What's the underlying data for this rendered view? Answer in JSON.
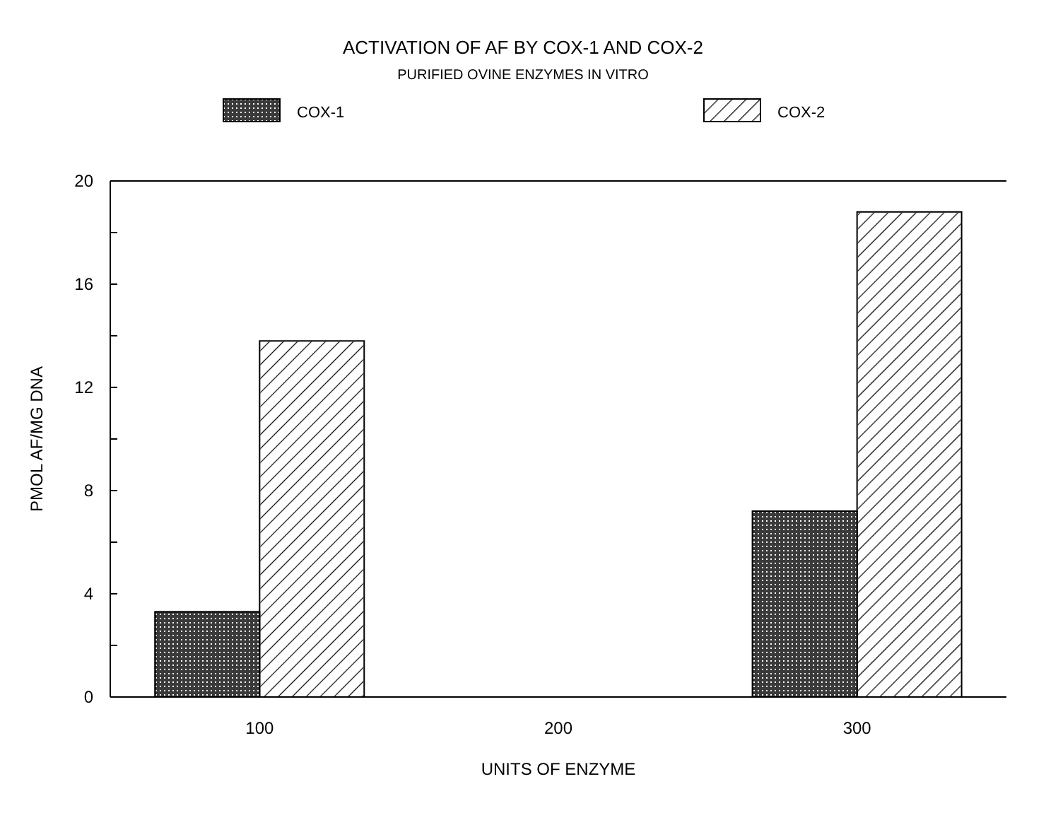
{
  "chart_data": {
    "type": "bar",
    "title": "ACTIVATION OF AF BY COX-1 AND COX-2",
    "subtitle": "PURIFIED OVINE ENZYMES IN VITRO",
    "xlabel": "UNITS OF ENZYME",
    "ylabel": "PMOL AF/MG DNA",
    "categories": [
      "100",
      "200",
      "300"
    ],
    "series": [
      {
        "name": "COX-1",
        "color": "#3a3a3a",
        "values": [
          3.3,
          null,
          7.2
        ]
      },
      {
        "name": "COX-2",
        "color": "#ffffff",
        "values": [
          13.8,
          null,
          18.8
        ]
      }
    ],
    "ylim": [
      0,
      20
    ],
    "yticks": [
      0,
      {
        "value": 2,
        "label": null
      },
      4,
      {
        "value": 6,
        "label": null
      },
      8,
      {
        "value": 10,
        "label": null
      },
      12,
      {
        "value": 14,
        "label": null
      },
      16,
      {
        "value": 18,
        "label": null
      },
      20
    ],
    "legend": "top",
    "grid": false
  }
}
